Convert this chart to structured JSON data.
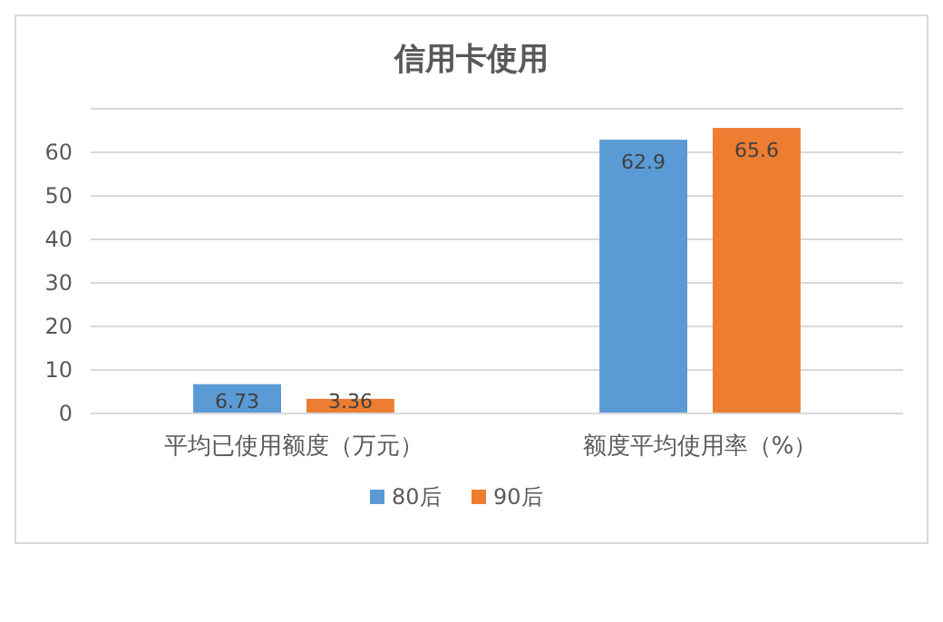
{
  "chart_data": {
    "type": "bar",
    "title": "信用卡使用",
    "categories": [
      "平均已使用额度（万元）",
      "额度平均使用率（%）"
    ],
    "series": [
      {
        "name": "80后",
        "color": "#5b9bd5",
        "values": [
          6.73,
          62.9
        ]
      },
      {
        "name": "90后",
        "color": "#ed7d31",
        "values": [
          3.36,
          65.6
        ]
      }
    ],
    "ylim": [
      0,
      70
    ],
    "yticks": [
      0,
      10,
      20,
      30,
      40,
      50,
      60,
      {
        "value": 70,
        "label": null
      }
    ],
    "grid": "y",
    "legend": "bottom",
    "data_labels": true
  }
}
